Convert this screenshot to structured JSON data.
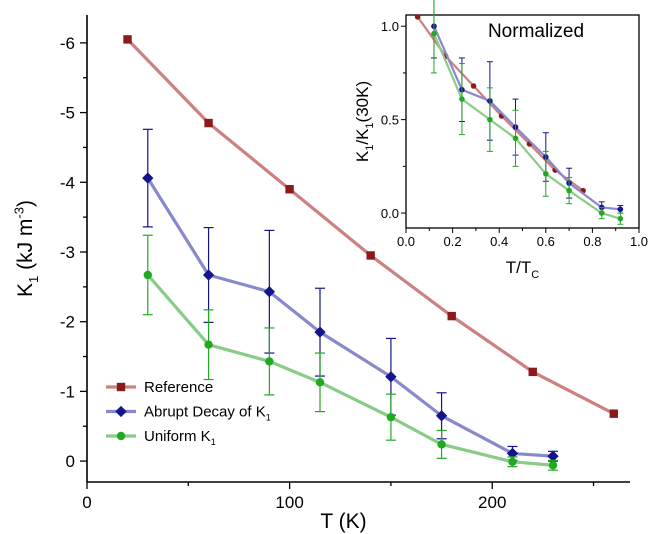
{
  "chart_data": {
    "main": {
      "type": "line",
      "xlabel": {
        "base": "T (K)"
      },
      "ylabel": {
        "base": "K",
        "sub": "1",
        "rest": " (kJ m",
        "sup": "-3",
        "close": ")"
      },
      "xlim": [
        0,
        268
      ],
      "ylim": [
        0.3,
        -6.4
      ],
      "y_inverted": true,
      "xticks": [
        0,
        100,
        200
      ],
      "xtick_labels": [
        "0",
        "100",
        "200"
      ],
      "yticks": [
        0,
        -1,
        -2,
        -3,
        -4,
        -5,
        -6
      ],
      "ytick_labels": [
        "0",
        "-1",
        "-2",
        "-3",
        "-4",
        "-5",
        "-6"
      ],
      "legend_position": "bottom-left",
      "series": [
        {
          "name": {
            "base": "Reference"
          },
          "color": "#cc8080",
          "marker_color": "#8b1a1a",
          "marker": "square",
          "x": [
            20,
            60,
            100,
            140,
            180,
            220,
            260
          ],
          "y": [
            -6.05,
            -4.85,
            -3.9,
            -2.95,
            -2.08,
            -1.28,
            -0.68
          ],
          "err": null
        },
        {
          "name": {
            "base": "Abrupt Decay of K",
            "sub": "1"
          },
          "color": "#8888cc",
          "marker_color": "#14148c",
          "marker": "diamond",
          "x": [
            30,
            60,
            90,
            115,
            150,
            175,
            210,
            230
          ],
          "y": [
            -4.06,
            -2.67,
            -2.43,
            -1.85,
            -1.21,
            -0.65,
            -0.11,
            -0.07
          ],
          "err": [
            0.7,
            0.68,
            0.88,
            0.63,
            0.55,
            0.33,
            0.1,
            0.07
          ]
        },
        {
          "name": {
            "base": "Uniform K",
            "sub": "1"
          },
          "color": "#88cc88",
          "marker_color": "#22a822",
          "marker": "circle",
          "x": [
            30,
            60,
            90,
            115,
            150,
            175,
            210,
            230
          ],
          "y": [
            -2.67,
            -1.67,
            -1.43,
            -1.13,
            -0.63,
            -0.24,
            0.01,
            0.06
          ],
          "err": [
            0.57,
            0.5,
            0.48,
            0.42,
            0.33,
            0.2,
            0.07,
            0.07
          ]
        }
      ]
    },
    "inset": {
      "type": "line",
      "title": "Normalized",
      "xlabel": {
        "base": "T/T",
        "sub": "C"
      },
      "ylabel": {
        "base": "K",
        "sub": "1",
        "rest": "/K",
        "sub2": "1",
        "close": "(30K)"
      },
      "xlim": [
        0,
        1.0
      ],
      "ylim": [
        -0.08,
        1.06
      ],
      "xticks": [
        0,
        0.2,
        0.4,
        0.6,
        0.8,
        1.0
      ],
      "xtick_labels": [
        "0.0",
        "0.2",
        "0.4",
        "0.6",
        "0.8",
        "1.0"
      ],
      "yticks": [
        0,
        0.5,
        1.0
      ],
      "ytick_labels": [
        "0.0",
        "0.5",
        "1.0"
      ],
      "series": [
        {
          "name": "",
          "color": "#cc8080",
          "marker_color": "#8b1a1a",
          "marker": "circle",
          "x": [
            0.05,
            0.17,
            0.29,
            0.41,
            0.53,
            0.64,
            0.76
          ],
          "y": [
            1.05,
            0.84,
            0.68,
            0.52,
            0.37,
            0.23,
            0.12
          ],
          "err": null
        },
        {
          "name": "",
          "color": "#8888cc",
          "marker_color": "#14148c",
          "marker": "circle",
          "x": [
            0.12,
            0.24,
            0.36,
            0.47,
            0.6,
            0.7,
            0.84,
            0.92
          ],
          "y": [
            1.0,
            0.66,
            0.6,
            0.46,
            0.3,
            0.16,
            0.03,
            0.02
          ],
          "err": [
            0.17,
            0.17,
            0.21,
            0.15,
            0.13,
            0.08,
            0.03,
            0.02
          ]
        },
        {
          "name": "",
          "color": "#88cc88",
          "marker_color": "#22a822",
          "marker": "circle",
          "x": [
            0.12,
            0.24,
            0.36,
            0.47,
            0.6,
            0.7,
            0.84,
            0.92
          ],
          "y": [
            0.96,
            0.61,
            0.5,
            0.4,
            0.21,
            0.12,
            0.0,
            -0.03
          ],
          "err": [
            0.21,
            0.19,
            0.17,
            0.15,
            0.12,
            0.07,
            0.03,
            0.03
          ]
        }
      ]
    }
  }
}
